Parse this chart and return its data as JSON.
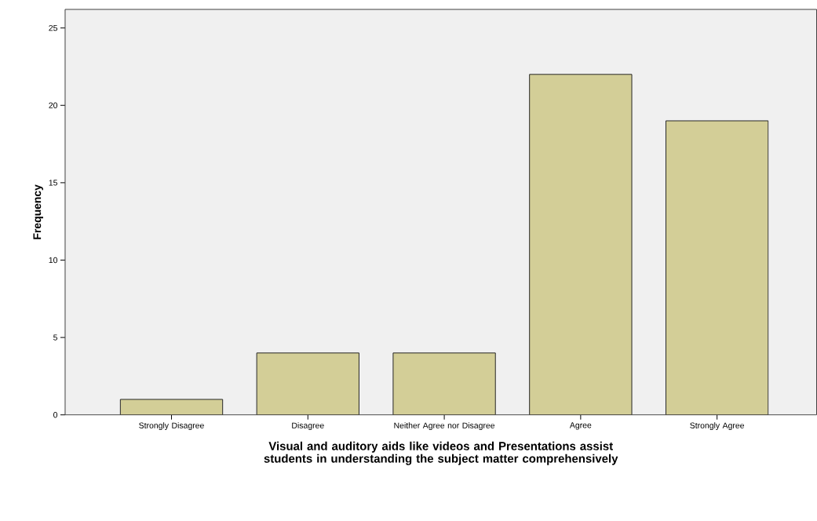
{
  "chart_data": {
    "type": "bar",
    "xlabel": "Visual and auditory aids like videos and Presentations assist students in understanding the subject matter comprehensively",
    "ylabel": "Frequency",
    "categories": [
      "Strongly Disagree",
      "Disagree",
      "Neither Agree nor Disagree",
      "Agree",
      "Strongly Agree"
    ],
    "values": [
      1,
      4,
      4,
      22,
      19
    ],
    "color": "#d3ce97",
    "ylim": [
      0,
      26.2
    ],
    "yticks": [
      0,
      5,
      10,
      15,
      20,
      25
    ],
    "grid": false
  }
}
